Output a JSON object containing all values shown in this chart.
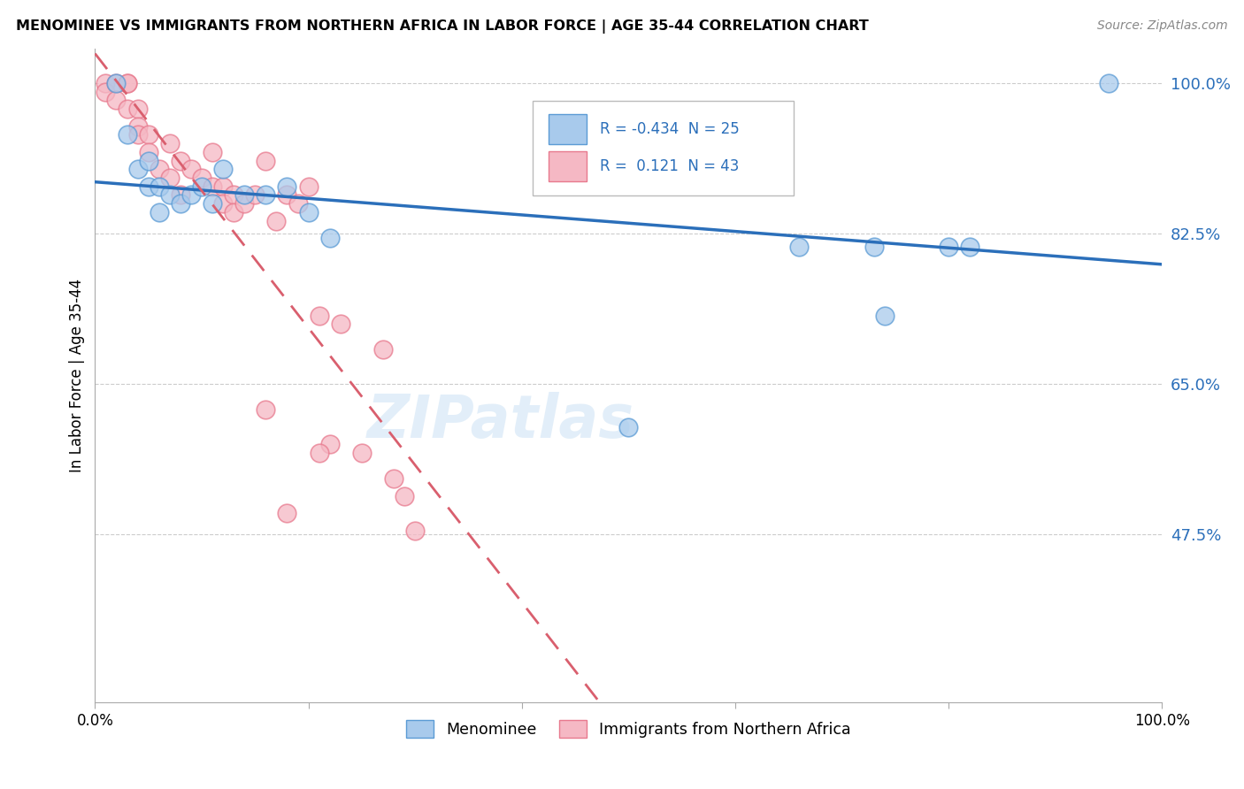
{
  "title": "MENOMINEE VS IMMIGRANTS FROM NORTHERN AFRICA IN LABOR FORCE | AGE 35-44 CORRELATION CHART",
  "source_text": "Source: ZipAtlas.com",
  "ylabel": "In Labor Force | Age 35-44",
  "xlim": [
    0.0,
    1.0
  ],
  "ylim": [
    0.28,
    1.04
  ],
  "yticks": [
    0.475,
    0.65,
    0.825,
    1.0
  ],
  "ytick_labels": [
    "47.5%",
    "65.0%",
    "82.5%",
    "100.0%"
  ],
  "xticks": [
    0.0,
    0.2,
    0.4,
    0.6,
    0.8,
    1.0
  ],
  "xtick_labels": [
    "0.0%",
    "",
    "",
    "",
    "",
    "100.0%"
  ],
  "legend_labels": [
    "Menominee",
    "Immigrants from Northern Africa"
  ],
  "R_blue": -0.434,
  "N_blue": 25,
  "R_pink": 0.121,
  "N_pink": 43,
  "blue_color": "#a8caec",
  "pink_color": "#f5b8c4",
  "blue_edge_color": "#5b9bd5",
  "pink_edge_color": "#e87a8e",
  "blue_line_color": "#2b6fba",
  "pink_line_color": "#d95f6e",
  "watermark": "ZIPatlas",
  "blue_points_x": [
    0.02,
    0.03,
    0.04,
    0.05,
    0.05,
    0.06,
    0.06,
    0.07,
    0.08,
    0.09,
    0.1,
    0.11,
    0.12,
    0.14,
    0.16,
    0.18,
    0.2,
    0.22,
    0.5,
    0.66,
    0.73,
    0.74,
    0.8,
    0.82,
    0.95
  ],
  "blue_points_y": [
    1.0,
    0.94,
    0.9,
    0.91,
    0.88,
    0.88,
    0.85,
    0.87,
    0.86,
    0.87,
    0.88,
    0.86,
    0.9,
    0.87,
    0.87,
    0.88,
    0.85,
    0.82,
    0.6,
    0.81,
    0.81,
    0.73,
    0.81,
    0.81,
    1.0
  ],
  "pink_points_x": [
    0.01,
    0.01,
    0.02,
    0.02,
    0.03,
    0.03,
    0.03,
    0.04,
    0.04,
    0.04,
    0.05,
    0.05,
    0.06,
    0.07,
    0.07,
    0.08,
    0.08,
    0.09,
    0.1,
    0.11,
    0.11,
    0.12,
    0.12,
    0.13,
    0.13,
    0.14,
    0.15,
    0.16,
    0.17,
    0.18,
    0.19,
    0.2,
    0.21,
    0.22,
    0.23,
    0.25,
    0.27,
    0.28,
    0.29,
    0.3,
    0.16,
    0.21,
    0.18
  ],
  "pink_points_y": [
    1.0,
    0.99,
    1.0,
    0.98,
    1.0,
    1.0,
    0.97,
    0.97,
    0.95,
    0.94,
    0.94,
    0.92,
    0.9,
    0.93,
    0.89,
    0.91,
    0.87,
    0.9,
    0.89,
    0.92,
    0.88,
    0.88,
    0.86,
    0.87,
    0.85,
    0.86,
    0.87,
    0.91,
    0.84,
    0.87,
    0.86,
    0.88,
    0.73,
    0.58,
    0.72,
    0.57,
    0.69,
    0.54,
    0.52,
    0.48,
    0.62,
    0.57,
    0.5
  ]
}
